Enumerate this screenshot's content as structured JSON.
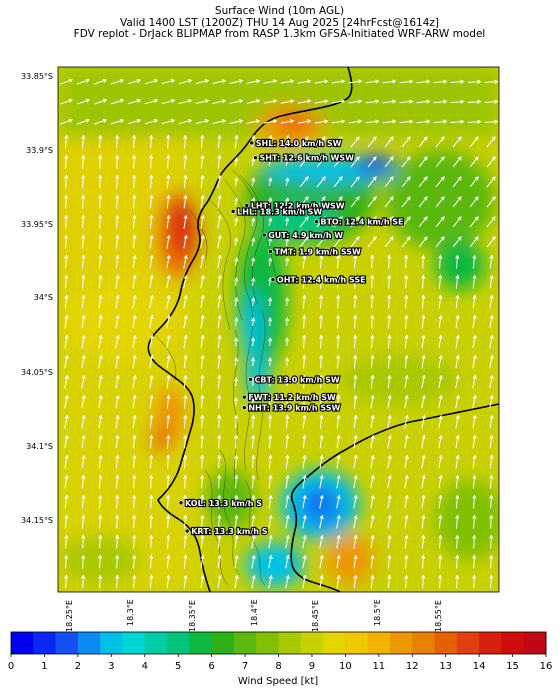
{
  "title": {
    "line1": "Surface Wind (10m AGL)",
    "line2": "Valid 1400 LST (1200Z) THU 14 Aug 2025 [24hrFcst@1614z]",
    "line3": "FDV replot - DrJack BLIPMAP from RASP 1.3km GFSA-Initiated WRF-ARW model"
  },
  "axes": {
    "lat_labels": [
      "33.85°S",
      "33.9°S",
      "33.95°S",
      "34°S",
      "34.05°S",
      "34.1°S",
      "34.15°S"
    ],
    "lon_labels": [
      "18.25°E",
      "18.3°E",
      "18.35°E",
      "18.4°E",
      "18.45°E",
      "18.5°E",
      "18.55°E"
    ]
  },
  "colorbar": {
    "title": "Wind Speed [kt]",
    "min": 0,
    "max": 16,
    "ticks": [
      "0",
      "1",
      "2",
      "3",
      "4",
      "5",
      "6",
      "7",
      "8",
      "9",
      "10",
      "11",
      "12",
      "13",
      "14",
      "15",
      "16"
    ],
    "colors": [
      "#0000f0",
      "#0a28f5",
      "#1450f5",
      "#0c8cf0",
      "#00c0e8",
      "#00d4d4",
      "#00cca8",
      "#00c47c",
      "#10b840",
      "#30b018",
      "#5ab810",
      "#80c000",
      "#a8c800",
      "#c8d000",
      "#e4d400",
      "#f0c800",
      "#f0b400",
      "#ec9800",
      "#e88000",
      "#e46000",
      "#e04010",
      "#d82010",
      "#d00c0c",
      "#c00818"
    ]
  },
  "stations": [
    {
      "code": "SHL",
      "text": "SHL: 14.0 km/h SW",
      "lat": -33.893,
      "lon": 18.386
    },
    {
      "code": "SHT",
      "text": "SHT: 12.6 km/h WSW",
      "lat": -33.903,
      "lon": 18.389
    },
    {
      "code": "LHT",
      "text": "LHT: 12.2 km/h WSW",
      "lat": -33.935,
      "lon": 18.382
    },
    {
      "code": "LHL",
      "text": "LHL: 18.3 km/h SW",
      "lat": -33.939,
      "lon": 18.371
    },
    {
      "code": "BTO",
      "text": "BTO: 12.4 km/h SE",
      "lat": -33.946,
      "lon": 18.438
    },
    {
      "code": "GUT",
      "text": "GUT: 4.9 km/h W",
      "lat": -33.955,
      "lon": 18.396
    },
    {
      "code": "TMT",
      "text": "TMT: 1.9 km/h SSW",
      "lat": -33.966,
      "lon": 18.401
    },
    {
      "code": "OHT",
      "text": "OHT: 12.4 km/h SSE",
      "lat": -33.985,
      "lon": 18.403
    },
    {
      "code": "CBT",
      "text": "CBT: 13.0 km/h SW",
      "lat": -34.052,
      "lon": 18.385
    },
    {
      "code": "FWT",
      "text": "FWT: 11.2 km/h SW",
      "lat": -34.064,
      "lon": 18.38
    },
    {
      "code": "NHT",
      "text": "NHT: 13.9 km/h SSW",
      "lat": -34.071,
      "lon": 18.38
    },
    {
      "code": "KOL",
      "text": "KOL: 13.3 km/h S",
      "lat": -34.135,
      "lon": 18.329
    },
    {
      "code": "KRT",
      "text": "KRT: 13.3 km/h S",
      "lat": -34.154,
      "lon": 18.334
    }
  ]
}
